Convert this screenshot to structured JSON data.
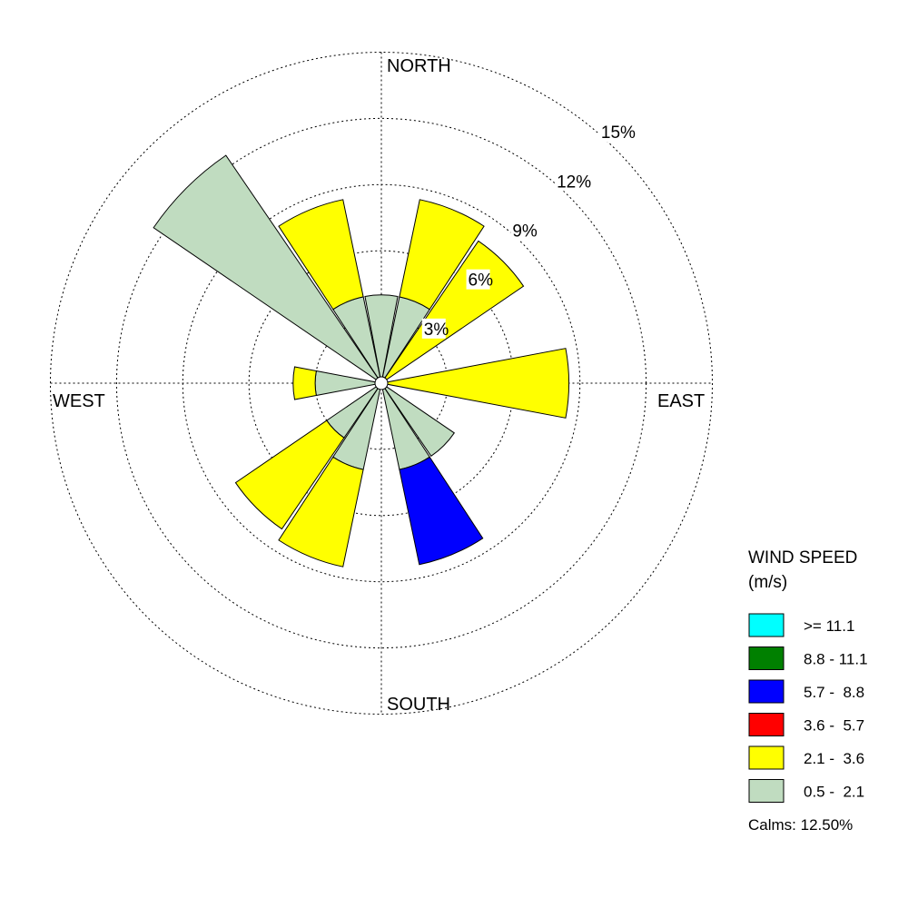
{
  "chart_data": {
    "type": "wind-rose",
    "directions": [
      "NORTH",
      "EAST",
      "SOUTH",
      "WEST"
    ],
    "ring_labels": [
      "3%",
      "6%",
      "9%",
      "12%",
      "15%"
    ],
    "ring_values": [
      3,
      6,
      9,
      12,
      15
    ],
    "sector_count": 16,
    "speed_bins": [
      {
        "label": ">= 11.1",
        "color": "#00ffff"
      },
      {
        "label": "8.8 - 11.1",
        "color": "#008000"
      },
      {
        "label": "5.7 -  8.8",
        "color": "#0000ff"
      },
      {
        "label": "3.6 -  5.7",
        "color": "#ff0000"
      },
      {
        "label": "2.1 -  3.6",
        "color": "#ffff00"
      },
      {
        "label": "0.5 -  2.1",
        "color": "#c0dcc0"
      }
    ],
    "sectors": [
      {
        "dir": "N",
        "bins": {
          "0.5 -  2.1": 4.0,
          "2.1 -  3.6": 0.0,
          "5.7 -  8.8": 0.0
        }
      },
      {
        "dir": "NNE",
        "bins": {
          "0.5 -  2.1": 4.0,
          "2.1 -  3.6": 4.5,
          "5.7 -  8.8": 0.0
        }
      },
      {
        "dir": "NE",
        "bins": {
          "0.5 -  2.1": 0.0,
          "2.1 -  3.6": 7.8,
          "5.7 -  8.8": 0.0
        }
      },
      {
        "dir": "ENE",
        "bins": {
          "0.5 -  2.1": 0.0,
          "2.1 -  3.6": 0.0,
          "5.7 -  8.8": 0.0
        }
      },
      {
        "dir": "E",
        "bins": {
          "0.5 -  2.1": 0.0,
          "2.1 -  3.6": 8.5,
          "5.7 -  8.8": 0.0
        }
      },
      {
        "dir": "ESE",
        "bins": {
          "0.5 -  2.1": 0.0,
          "2.1 -  3.6": 0.0,
          "5.7 -  8.8": 0.0
        }
      },
      {
        "dir": "SE",
        "bins": {
          "0.5 -  2.1": 4.0,
          "2.1 -  3.6": 0.0,
          "5.7 -  8.8": 0.0
        }
      },
      {
        "dir": "SSE",
        "bins": {
          "0.5 -  2.1": 4.0,
          "2.1 -  3.6": 0.0,
          "5.7 -  8.8": 4.4
        }
      },
      {
        "dir": "S",
        "bins": {
          "0.5 -  2.1": 0.0,
          "2.1 -  3.6": 0.0,
          "5.7 -  8.8": 0.0
        }
      },
      {
        "dir": "SSW",
        "bins": {
          "0.5 -  2.1": 4.0,
          "2.1 -  3.6": 4.5,
          "5.7 -  8.8": 0.0
        }
      },
      {
        "dir": "SW",
        "bins": {
          "0.5 -  2.1": 3.0,
          "2.1 -  3.6": 5.0,
          "5.7 -  8.8": 0.0
        }
      },
      {
        "dir": "WSW",
        "bins": {
          "0.5 -  2.1": 0.0,
          "2.1 -  3.6": 0.0,
          "5.7 -  8.8": 0.0
        }
      },
      {
        "dir": "W",
        "bins": {
          "0.5 -  2.1": 3.0,
          "2.1 -  3.6": 1.0,
          "5.7 -  8.8": 0.0
        }
      },
      {
        "dir": "WNW",
        "bins": {
          "0.5 -  2.1": 0.0,
          "2.1 -  3.6": 0.0,
          "5.7 -  8.8": 0.0
        }
      },
      {
        "dir": "NW",
        "bins": {
          "0.5 -  2.1": 12.5,
          "2.1 -  3.6": 0.0,
          "5.7 -  8.8": 0.0
        }
      },
      {
        "dir": "NNW",
        "bins": {
          "0.5 -  2.1": 4.0,
          "2.1 -  3.6": 4.5,
          "5.7 -  8.8": 0.0
        }
      }
    ],
    "legend": {
      "title_line1": "WIND SPEED",
      "title_line2": "(m/s)",
      "calms_text": "Calms: 12.50%"
    },
    "calms": 12.5,
    "grid": true
  }
}
